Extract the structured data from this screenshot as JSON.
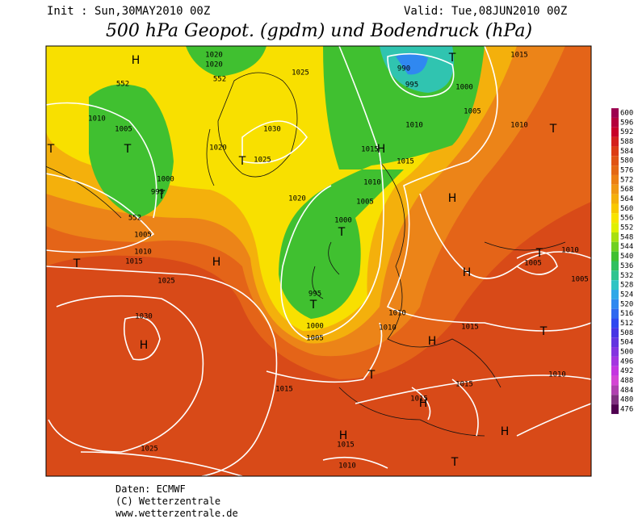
{
  "header": {
    "init": "Init : Sun,30MAY2010 00Z",
    "valid": "Valid: Tue,08JUN2010 00Z",
    "title": "500 hPa Geopot. (gpdm) und Bodendruck (hPa)"
  },
  "map": {
    "labels": [
      "H",
      "1020",
      "1020",
      "552",
      "1025",
      "990",
      "995",
      "T",
      "1015",
      "1000",
      "1005",
      "1010",
      "1010",
      "T",
      "552",
      "1010",
      "1005",
      "T",
      "T",
      "1030",
      "1020",
      "T",
      "1025",
      "1015",
      "H",
      "1015",
      "1000",
      "995",
      "T",
      "1010",
      "1020",
      "1005",
      "H",
      "552",
      "1000",
      "T",
      "1005",
      "1010",
      "1015",
      "T",
      "H",
      "1005",
      "T",
      "1010",
      "H",
      "1005",
      "1025",
      "995",
      "T",
      "1030",
      "1010",
      "1000",
      "1005",
      "1010",
      "1015",
      "T",
      "H",
      "H",
      "T",
      "1010",
      "1015",
      "1015",
      "1015",
      "H",
      "1025",
      "H",
      "1015",
      "H",
      "1010",
      "T"
    ]
  },
  "colorbar": {
    "labels": [
      600,
      596,
      592,
      588,
      584,
      580,
      576,
      572,
      568,
      564,
      560,
      556,
      552,
      548,
      544,
      540,
      536,
      532,
      528,
      524,
      520,
      516,
      512,
      508,
      504,
      500,
      496,
      492,
      488,
      484,
      480,
      476
    ],
    "colors": [
      "#9c0050",
      "#b4003c",
      "#c80028",
      "#d4201c",
      "#dc3c14",
      "#e05414",
      "#e46814",
      "#ec8014",
      "#f09814",
      "#f4b00c",
      "#f8c800",
      "#f8e400",
      "#e0f000",
      "#a8e010",
      "#70d020",
      "#40c030",
      "#30c060",
      "#30c490",
      "#30c4c4",
      "#30a8e8",
      "#3088f0",
      "#3068f0",
      "#3048f0",
      "#4834e4",
      "#6434e0",
      "#8434e0",
      "#a434e0",
      "#c434e0",
      "#d444d4",
      "#b040b0",
      "#803080",
      "#500050"
    ]
  },
  "footer": {
    "source": "Daten: ECMWF",
    "copyright": "(C) Wetterzentrale",
    "url": "www.wetterzentrale.de"
  }
}
